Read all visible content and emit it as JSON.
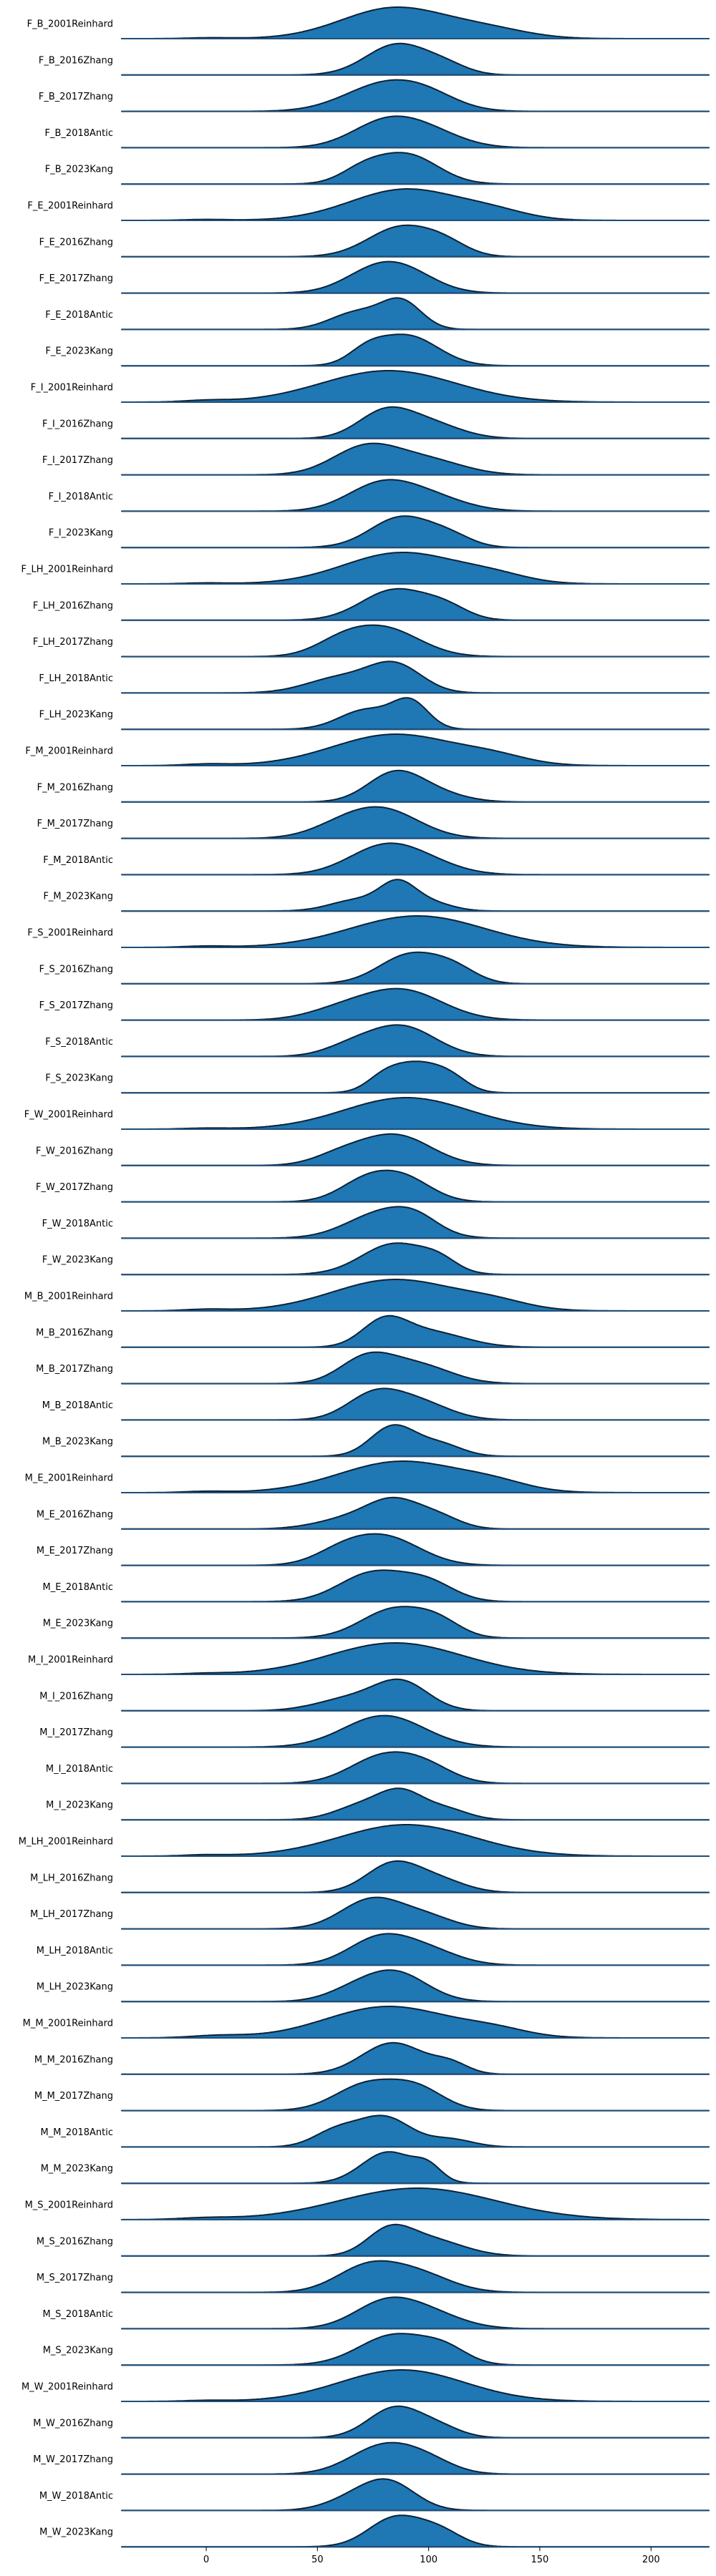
{
  "chart_data": {
    "type": "area",
    "chart_kind": "ridgeline",
    "title": "",
    "xlabel": "",
    "ylabel": "",
    "xlim": [
      -38,
      226
    ],
    "x_ticks": [
      0,
      50,
      100,
      150,
      200
    ],
    "fill_color": "#1f77b4",
    "line_color": "#0b2236",
    "baseline_color": "#1f4e79",
    "legend": "none",
    "grid": false,
    "series": [
      {
        "name": "F_B_2001Reinhard",
        "shape": [
          [
            85,
            24,
            1.0
          ],
          [
            128,
            18,
            0.25
          ],
          [
            2,
            10,
            0.03
          ]
        ]
      },
      {
        "name": "F_B_2016Zhang",
        "shape": [
          [
            86,
            14,
            1.0
          ],
          [
            108,
            10,
            0.25
          ]
        ]
      },
      {
        "name": "F_B_2017Zhang",
        "shape": [
          [
            80,
            18,
            1.0
          ],
          [
            100,
            14,
            0.4
          ]
        ]
      },
      {
        "name": "F_B_2018Antic",
        "shape": [
          [
            80,
            15,
            1.0
          ],
          [
            100,
            15,
            0.6
          ]
        ]
      },
      {
        "name": "F_B_2023Kang",
        "shape": [
          [
            90,
            14,
            1.0
          ],
          [
            70,
            10,
            0.4
          ]
        ]
      },
      {
        "name": "F_E_2001Reinhard",
        "shape": [
          [
            90,
            25,
            1.0
          ],
          [
            130,
            15,
            0.2
          ],
          [
            0,
            10,
            0.03
          ]
        ]
      },
      {
        "name": "F_E_2016Zhang",
        "shape": [
          [
            88,
            15,
            1.0
          ],
          [
            108,
            10,
            0.3
          ]
        ]
      },
      {
        "name": "F_E_2017Zhang",
        "shape": [
          [
            75,
            14,
            0.85
          ],
          [
            90,
            14,
            0.8
          ]
        ]
      },
      {
        "name": "F_E_2018Antic",
        "shape": [
          [
            88,
            9,
            1.0
          ],
          [
            68,
            12,
            0.65
          ]
        ]
      },
      {
        "name": "F_E_2023Kang",
        "shape": [
          [
            90,
            14,
            1.0
          ],
          [
            72,
            8,
            0.35
          ]
        ]
      },
      {
        "name": "F_I_2001Reinhard",
        "shape": [
          [
            82,
            30,
            1.0
          ],
          [
            0,
            10,
            0.05
          ]
        ]
      },
      {
        "name": "F_I_2016Zhang",
        "shape": [
          [
            80,
            12,
            1.0
          ],
          [
            100,
            14,
            0.6
          ]
        ]
      },
      {
        "name": "F_I_2017Zhang",
        "shape": [
          [
            72,
            15,
            1.0
          ],
          [
            100,
            16,
            0.5
          ]
        ]
      },
      {
        "name": "F_I_2018Antic",
        "shape": [
          [
            78,
            15,
            1.0
          ],
          [
            100,
            16,
            0.55
          ]
        ]
      },
      {
        "name": "F_I_2023Kang",
        "shape": [
          [
            88,
            14,
            1.0
          ],
          [
            110,
            10,
            0.3
          ]
        ]
      },
      {
        "name": "F_LH_2001Reinhard",
        "shape": [
          [
            88,
            26,
            1.0
          ],
          [
            130,
            15,
            0.2
          ],
          [
            0,
            10,
            0.03
          ]
        ]
      },
      {
        "name": "F_LH_2016Zhang",
        "shape": [
          [
            85,
            15,
            1.0
          ],
          [
            108,
            10,
            0.35
          ]
        ]
      },
      {
        "name": "F_LH_2017Zhang",
        "shape": [
          [
            80,
            16,
            1.0
          ],
          [
            60,
            12,
            0.4
          ]
        ]
      },
      {
        "name": "F_LH_2018Antic",
        "shape": [
          [
            85,
            12,
            1.0
          ],
          [
            60,
            15,
            0.55
          ]
        ]
      },
      {
        "name": "F_LH_2023Kang",
        "shape": [
          [
            92,
            8,
            1.0
          ],
          [
            72,
            12,
            0.75
          ]
        ]
      },
      {
        "name": "F_M_2001Reinhard",
        "shape": [
          [
            85,
            28,
            1.0
          ],
          [
            130,
            15,
            0.2
          ],
          [
            0,
            10,
            0.05
          ]
        ]
      },
      {
        "name": "F_M_2016Zhang",
        "shape": [
          [
            84,
            12,
            1.0
          ],
          [
            100,
            14,
            0.4
          ]
        ]
      },
      {
        "name": "F_M_2017Zhang",
        "shape": [
          [
            80,
            16,
            1.0
          ],
          [
            60,
            14,
            0.35
          ]
        ]
      },
      {
        "name": "F_M_2018Antic",
        "shape": [
          [
            80,
            16,
            1.0
          ],
          [
            100,
            15,
            0.3
          ]
        ]
      },
      {
        "name": "F_M_2023Kang",
        "shape": [
          [
            86,
            8,
            1.0
          ],
          [
            68,
            12,
            0.45
          ],
          [
            100,
            10,
            0.35
          ]
        ]
      },
      {
        "name": "F_S_2001Reinhard",
        "shape": [
          [
            95,
            30,
            1.0
          ],
          [
            0,
            10,
            0.04
          ]
        ]
      },
      {
        "name": "F_S_2016Zhang",
        "shape": [
          [
            92,
            14,
            1.0
          ],
          [
            112,
            10,
            0.4
          ]
        ]
      },
      {
        "name": "F_S_2017Zhang",
        "shape": [
          [
            88,
            18,
            1.0
          ],
          [
            60,
            15,
            0.3
          ]
        ]
      },
      {
        "name": "F_S_2018Antic",
        "shape": [
          [
            88,
            15,
            1.0
          ],
          [
            65,
            12,
            0.3
          ]
        ]
      },
      {
        "name": "F_S_2023Kang",
        "shape": [
          [
            95,
            10,
            1.0
          ],
          [
            80,
            8,
            0.55
          ],
          [
            110,
            8,
            0.5
          ]
        ]
      },
      {
        "name": "F_W_2001Reinhard",
        "shape": [
          [
            90,
            28,
            1.0
          ],
          [
            0,
            10,
            0.03
          ]
        ]
      },
      {
        "name": "F_W_2016Zhang",
        "shape": [
          [
            85,
            16,
            1.0
          ],
          [
            60,
            12,
            0.3
          ]
        ]
      },
      {
        "name": "F_W_2017Zhang",
        "shape": [
          [
            72,
            12,
            1.0
          ],
          [
            90,
            12,
            1.0
          ]
        ]
      },
      {
        "name": "F_W_2018Antic",
        "shape": [
          [
            80,
            16,
            1.0
          ],
          [
            95,
            10,
            0.4
          ]
        ]
      },
      {
        "name": "F_W_2023Kang",
        "shape": [
          [
            85,
            15,
            1.0
          ],
          [
            105,
            8,
            0.3
          ]
        ]
      },
      {
        "name": "M_B_2001Reinhard",
        "shape": [
          [
            85,
            28,
            1.0
          ],
          [
            130,
            15,
            0.2
          ],
          [
            0,
            10,
            0.05
          ]
        ]
      },
      {
        "name": "M_B_2016Zhang",
        "shape": [
          [
            80,
            10,
            1.0
          ],
          [
            100,
            16,
            0.65
          ]
        ]
      },
      {
        "name": "M_B_2017Zhang",
        "shape": [
          [
            72,
            12,
            1.0
          ],
          [
            95,
            15,
            0.75
          ]
        ]
      },
      {
        "name": "M_B_2018Antic",
        "shape": [
          [
            75,
            12,
            1.0
          ],
          [
            95,
            14,
            0.75
          ]
        ]
      },
      {
        "name": "M_B_2023Kang",
        "shape": [
          [
            84,
            10,
            1.0
          ],
          [
            105,
            10,
            0.4
          ]
        ]
      },
      {
        "name": "M_E_2001Reinhard",
        "shape": [
          [
            88,
            28,
            1.0
          ],
          [
            130,
            15,
            0.2
          ],
          [
            0,
            10,
            0.04
          ]
        ]
      },
      {
        "name": "M_E_2016Zhang",
        "shape": [
          [
            85,
            12,
            1.0
          ],
          [
            65,
            15,
            0.4
          ],
          [
            105,
            10,
            0.4
          ]
        ]
      },
      {
        "name": "M_E_2017Zhang",
        "shape": [
          [
            80,
            16,
            1.0
          ],
          [
            60,
            12,
            0.35
          ]
        ]
      },
      {
        "name": "M_E_2018Antic",
        "shape": [
          [
            75,
            15,
            1.0
          ],
          [
            100,
            12,
            0.6
          ]
        ]
      },
      {
        "name": "M_E_2023Kang",
        "shape": [
          [
            85,
            15,
            1.0
          ],
          [
            105,
            10,
            0.4
          ]
        ]
      },
      {
        "name": "M_I_2001Reinhard",
        "shape": [
          [
            85,
            30,
            1.0
          ],
          [
            0,
            10,
            0.03
          ]
        ]
      },
      {
        "name": "M_I_2016Zhang",
        "shape": [
          [
            88,
            12,
            1.0
          ],
          [
            65,
            15,
            0.45
          ]
        ]
      },
      {
        "name": "M_I_2017Zhang",
        "shape": [
          [
            80,
            18,
            1.0
          ]
        ]
      },
      {
        "name": "M_I_2018Antic",
        "shape": [
          [
            80,
            15,
            1.0
          ],
          [
            100,
            12,
            0.45
          ]
        ]
      },
      {
        "name": "M_I_2023Kang",
        "shape": [
          [
            88,
            10,
            1.0
          ],
          [
            70,
            12,
            0.55
          ],
          [
            108,
            10,
            0.4
          ]
        ]
      },
      {
        "name": "M_LH_2001Reinhard",
        "shape": [
          [
            90,
            30,
            1.0
          ],
          [
            0,
            10,
            0.04
          ]
        ]
      },
      {
        "name": "M_LH_2016Zhang",
        "shape": [
          [
            84,
            12,
            1.0
          ],
          [
            105,
            12,
            0.4
          ]
        ]
      },
      {
        "name": "M_LH_2017Zhang",
        "shape": [
          [
            75,
            14,
            1.0
          ],
          [
            100,
            12,
            0.35
          ]
        ]
      },
      {
        "name": "M_LH_2018Antic",
        "shape": [
          [
            78,
            14,
            1.0
          ],
          [
            100,
            14,
            0.5
          ]
        ]
      },
      {
        "name": "M_LH_2023Kang",
        "shape": [
          [
            85,
            14,
            1.0
          ],
          [
            65,
            12,
            0.3
          ]
        ]
      },
      {
        "name": "M_M_2001Reinhard",
        "shape": [
          [
            82,
            28,
            1.0
          ],
          [
            130,
            15,
            0.2
          ],
          [
            5,
            12,
            0.07
          ]
        ]
      },
      {
        "name": "M_M_2016Zhang",
        "shape": [
          [
            84,
            14,
            1.0
          ],
          [
            110,
            8,
            0.3
          ]
        ]
      },
      {
        "name": "M_M_2017Zhang",
        "shape": [
          [
            72,
            14,
            1.0
          ],
          [
            95,
            12,
            0.8
          ]
        ]
      },
      {
        "name": "M_M_2018Antic",
        "shape": [
          [
            80,
            12,
            1.0
          ],
          [
            58,
            10,
            0.5
          ],
          [
            110,
            10,
            0.25
          ]
        ]
      },
      {
        "name": "M_M_2023Kang",
        "shape": [
          [
            82,
            12,
            1.0
          ],
          [
            100,
            6,
            0.4
          ]
        ]
      },
      {
        "name": "M_S_2001Reinhard",
        "shape": [
          [
            95,
            35,
            1.0
          ],
          [
            0,
            12,
            0.05
          ]
        ]
      },
      {
        "name": "M_S_2016Zhang",
        "shape": [
          [
            82,
            10,
            1.0
          ],
          [
            100,
            15,
            0.75
          ]
        ]
      },
      {
        "name": "M_S_2017Zhang",
        "shape": [
          [
            72,
            14,
            1.0
          ],
          [
            95,
            15,
            0.75
          ]
        ]
      },
      {
        "name": "M_S_2018Antic",
        "shape": [
          [
            80,
            14,
            1.0
          ],
          [
            100,
            15,
            0.6
          ]
        ]
      },
      {
        "name": "M_S_2023Kang",
        "shape": [
          [
            85,
            16,
            1.0
          ],
          [
            108,
            10,
            0.4
          ]
        ]
      },
      {
        "name": "M_W_2001Reinhard",
        "shape": [
          [
            88,
            28,
            1.0
          ],
          [
            0,
            10,
            0.03
          ]
        ]
      },
      {
        "name": "M_W_2016Zhang",
        "shape": [
          [
            85,
            12,
            1.0
          ],
          [
            105,
            10,
            0.3
          ]
        ]
      },
      {
        "name": "M_W_2017Zhang",
        "shape": [
          [
            80,
            15,
            1.0
          ],
          [
            100,
            12,
            0.35
          ]
        ]
      },
      {
        "name": "M_W_2018Antic",
        "shape": [
          [
            82,
            12,
            1.0
          ],
          [
            65,
            12,
            0.35
          ]
        ]
      },
      {
        "name": "M_W_2023Kang",
        "shape": [
          [
            85,
            12,
            1.0
          ],
          [
            105,
            10,
            0.5
          ]
        ]
      }
    ]
  }
}
